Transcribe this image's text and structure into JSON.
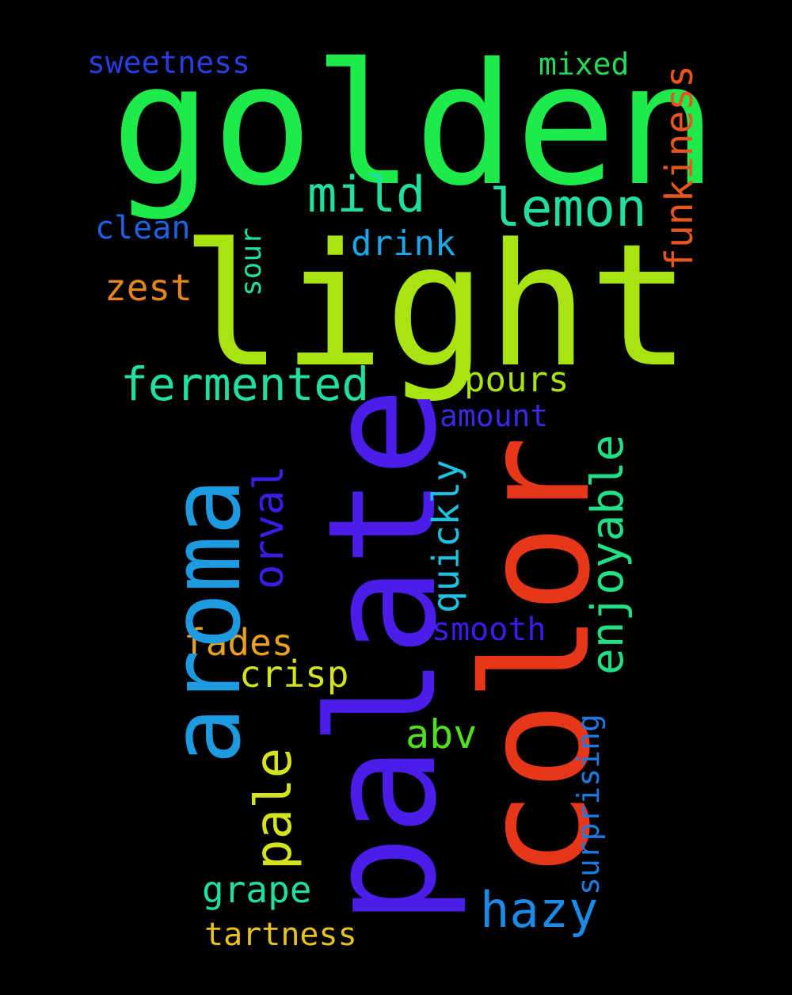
{
  "wordcloud": {
    "words": [
      {
        "text": "golden",
        "color": "#1eea4a"
      },
      {
        "text": "light",
        "color": "#a8e312"
      },
      {
        "text": "palate",
        "color": "#4b1de8"
      },
      {
        "text": "color",
        "color": "#e8361a"
      },
      {
        "text": "aroma",
        "color": "#1e9be0"
      },
      {
        "text": "sweetness",
        "color": "#2a3fe0"
      },
      {
        "text": "mixed",
        "color": "#28d85a"
      },
      {
        "text": "funkiness",
        "color": "#e8561e"
      },
      {
        "text": "mild",
        "color": "#22dfa0"
      },
      {
        "text": "lemon",
        "color": "#22dfa0"
      },
      {
        "text": "clean",
        "color": "#1e62e0"
      },
      {
        "text": "drink",
        "color": "#1ea6e8"
      },
      {
        "text": "sour",
        "color": "#22dfa0"
      },
      {
        "text": "zest",
        "color": "#e8841e"
      },
      {
        "text": "fermented",
        "color": "#22dfa0"
      },
      {
        "text": "pours",
        "color": "#a8e312"
      },
      {
        "text": "amount",
        "color": "#3a2ae0"
      },
      {
        "text": "enjoyable",
        "color": "#22df86"
      },
      {
        "text": "orval",
        "color": "#3a1ee8"
      },
      {
        "text": "quickly",
        "color": "#1ec2e0"
      },
      {
        "text": "smooth",
        "color": "#3a1ee8"
      },
      {
        "text": "fades",
        "color": "#e8a21e"
      },
      {
        "text": "crisp",
        "color": "#d4e31e"
      },
      {
        "text": "abv",
        "color": "#52e01e"
      },
      {
        "text": "surprising",
        "color": "#1e7ae0"
      },
      {
        "text": "pale",
        "color": "#d4e31e"
      },
      {
        "text": "grape",
        "color": "#22dfa0"
      },
      {
        "text": "hazy",
        "color": "#1e8ae8"
      },
      {
        "text": "tartness",
        "color": "#e8c21e"
      }
    ]
  }
}
